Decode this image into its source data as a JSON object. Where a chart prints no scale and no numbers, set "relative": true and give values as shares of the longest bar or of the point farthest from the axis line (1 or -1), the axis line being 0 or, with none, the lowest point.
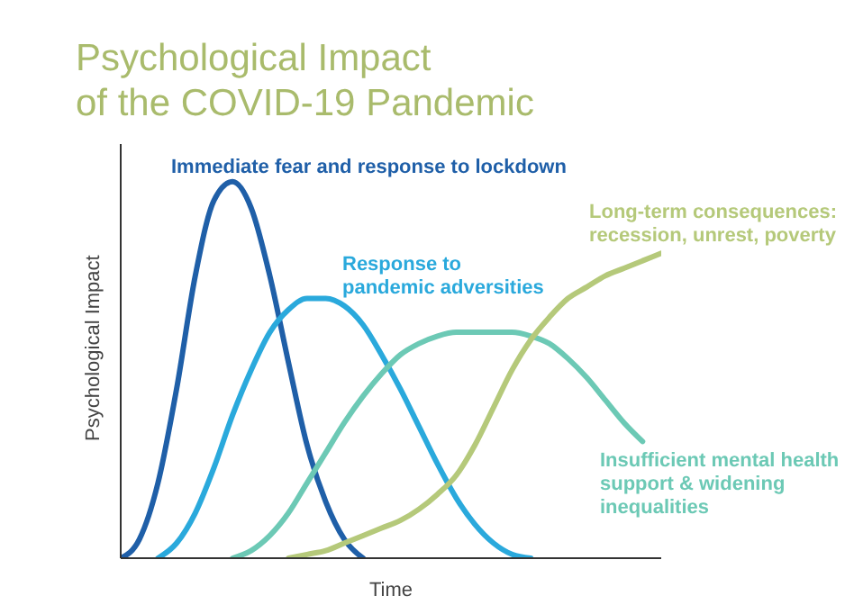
{
  "chart_data": {
    "type": "line",
    "title": "Psychological Impact of the COVID-19 Pandemic",
    "xlabel": "Time",
    "ylabel": "Psychological Impact",
    "relative": true,
    "legend": false,
    "marker": "none",
    "line_style": "solid",
    "grid": false,
    "categories": [
      null,
      null,
      null,
      null,
      null,
      null,
      null,
      null,
      null,
      null,
      null,
      null,
      null,
      null,
      null,
      null,
      null,
      null,
      null,
      null,
      null,
      null,
      null,
      null,
      null,
      null,
      null,
      null,
      null,
      null
    ],
    "series": [
      {
        "name": "Immediate fear and response to lockdown",
        "color": "#1f5fa8",
        "values": [
          0,
          0.05,
          0.2,
          0.45,
          0.75,
          0.95,
          1.0,
          0.93,
          0.75,
          0.52,
          0.3,
          0.15,
          0.05,
          0,
          null,
          null,
          null,
          null,
          null,
          null,
          null,
          null,
          null,
          null,
          null,
          null,
          null,
          null,
          null,
          null
        ]
      },
      {
        "name": "Response to pandemic adversities",
        "color": "#2aa9dc",
        "values": [
          null,
          null,
          0,
          0.04,
          0.12,
          0.24,
          0.38,
          0.5,
          0.6,
          0.66,
          0.69,
          0.69,
          0.67,
          0.62,
          0.54,
          0.45,
          0.35,
          0.25,
          0.16,
          0.09,
          0.04,
          0.01,
          0,
          null,
          null,
          null,
          null,
          null,
          null,
          null
        ]
      },
      {
        "name": "Insufficient mental health support & widening inequalities",
        "color": "#6cc9b5",
        "values": [
          null,
          null,
          null,
          null,
          null,
          null,
          0,
          0.02,
          0.06,
          0.12,
          0.2,
          0.28,
          0.36,
          0.43,
          0.49,
          0.54,
          0.57,
          0.59,
          0.6,
          0.6,
          0.6,
          0.6,
          0.59,
          0.57,
          0.53,
          0.48,
          0.42,
          0.36,
          0.31,
          null
        ]
      },
      {
        "name": "Long-term consequences: recession, unrest, poverty",
        "color": "#b5c97a",
        "values": [
          null,
          null,
          null,
          null,
          null,
          null,
          null,
          null,
          null,
          0,
          0.01,
          0.02,
          0.04,
          0.06,
          0.08,
          0.1,
          0.13,
          0.17,
          0.22,
          0.3,
          0.4,
          0.5,
          0.58,
          0.64,
          0.69,
          0.72,
          0.75,
          0.77,
          0.79,
          0.81
        ]
      }
    ]
  }
}
